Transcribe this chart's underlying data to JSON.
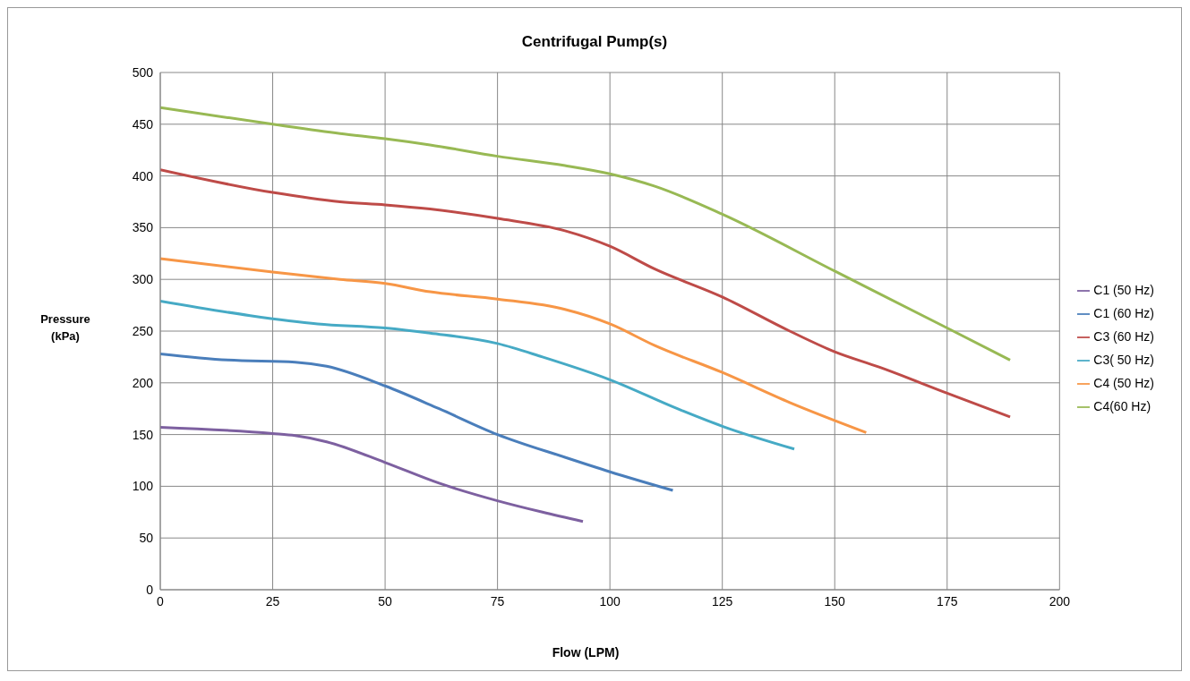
{
  "chart_data": {
    "type": "line",
    "title": "Centrifugal Pump(s)",
    "xlabel": "Flow (LPM)",
    "ylabel": "Pressure (kPa)",
    "xlim": [
      0,
      200
    ],
    "xticks": [
      0,
      25,
      50,
      75,
      100,
      125,
      150,
      175,
      200
    ],
    "ylim": [
      0,
      500
    ],
    "yticks": [
      0,
      50,
      100,
      150,
      200,
      250,
      300,
      350,
      400,
      450,
      500
    ],
    "grid": true,
    "legend": "right",
    "marker": "none",
    "line_style": "solid",
    "series": [
      {
        "name": "C1 (60 Hz)",
        "color": "#4a7ebb",
        "x": [
          0,
          15,
          30,
          37,
          50,
          62,
          75,
          90,
          100,
          114
        ],
        "values": [
          228,
          222,
          220,
          216,
          197,
          175,
          150,
          128,
          114,
          96
        ]
      },
      {
        "name": "C3 (60 Hz)",
        "color": "#be4b48",
        "x": [
          0,
          25,
          40,
          50,
          60,
          75,
          90,
          100,
          110,
          125,
          140,
          150,
          160,
          175,
          189
        ],
        "values": [
          406,
          384,
          375,
          372,
          368,
          359,
          347,
          332,
          310,
          283,
          250,
          230,
          215,
          190,
          167
        ]
      },
      {
        "name": "C4(60 Hz)",
        "color": "#98b954",
        "x": [
          0,
          25,
          40,
          50,
          60,
          75,
          90,
          100,
          110,
          125,
          150,
          175,
          189
        ],
        "values": [
          466,
          450,
          441,
          436,
          430,
          419,
          410,
          402,
          390,
          363,
          308,
          253,
          222
        ]
      },
      {
        "name": "C1 (50 Hz)",
        "color": "#7d60a0",
        "x": [
          0,
          25,
          30,
          37,
          50,
          62,
          75,
          85,
          94
        ],
        "values": [
          157,
          151,
          149,
          143,
          123,
          103,
          86,
          75,
          66
        ]
      },
      {
        "name": "C3( 50 Hz)",
        "color": "#46aac5",
        "x": [
          0,
          20,
          35,
          50,
          60,
          75,
          85,
          100,
          115,
          125,
          141
        ],
        "values": [
          279,
          265,
          257,
          253,
          248,
          238,
          225,
          203,
          175,
          158,
          136
        ]
      },
      {
        "name": "C4 (50 Hz)",
        "color": "#f79646",
        "x": [
          0,
          25,
          40,
          50,
          60,
          75,
          90,
          100,
          110,
          125,
          140,
          157
        ],
        "values": [
          320,
          307,
          300,
          296,
          288,
          281,
          271,
          257,
          236,
          210,
          181,
          152
        ]
      }
    ]
  }
}
